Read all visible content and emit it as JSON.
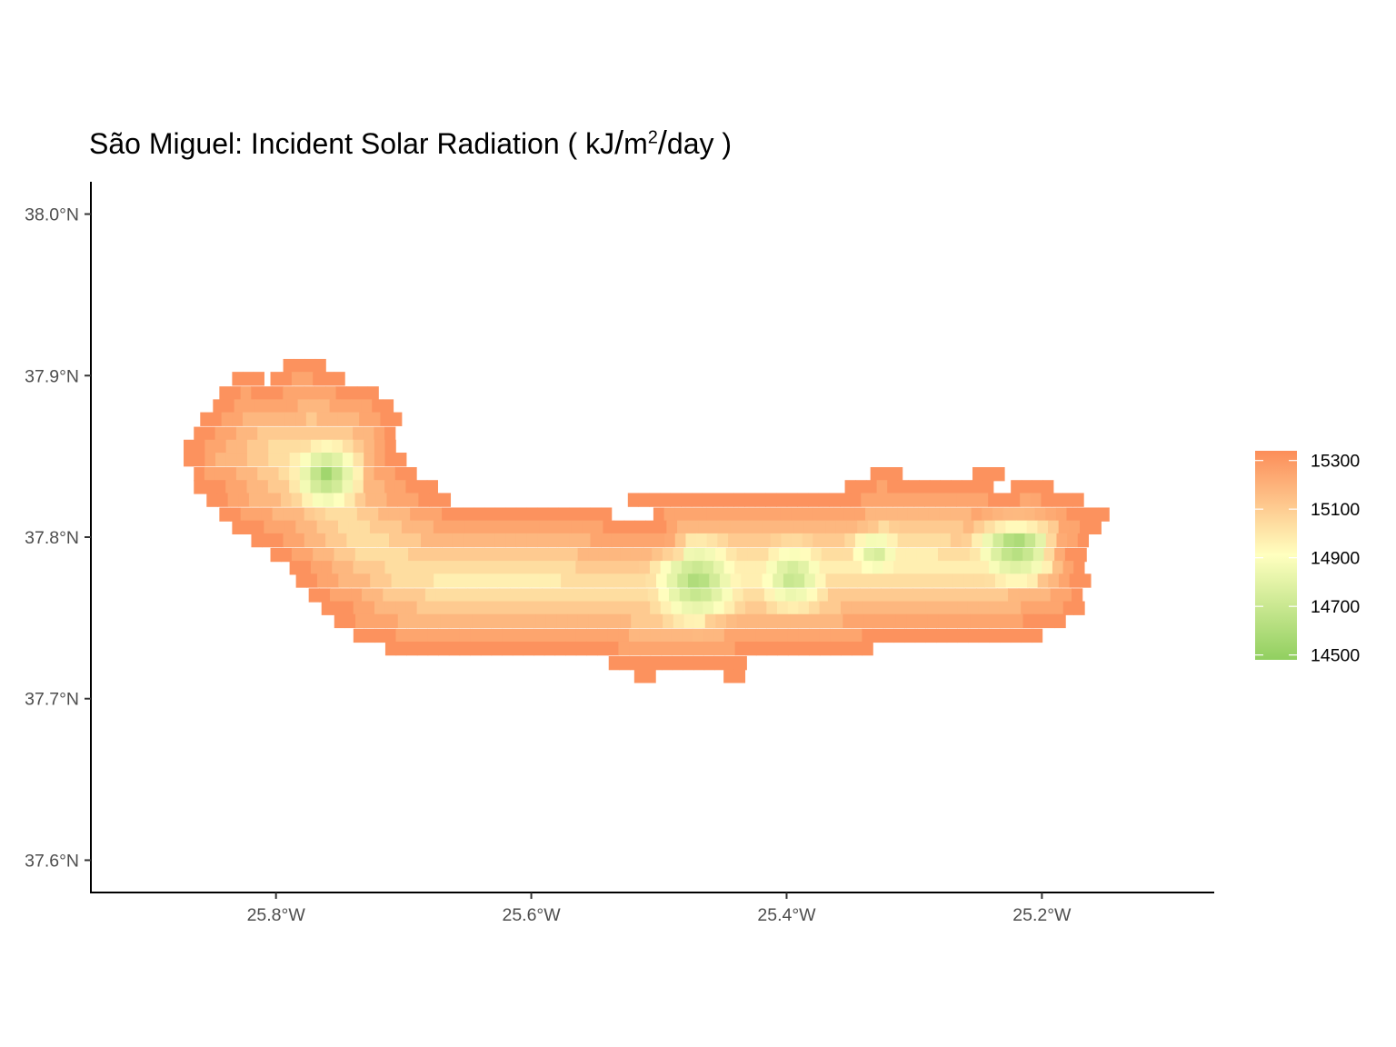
{
  "title": {
    "prefix": "São Miguel: Incident Solar Radiation ( kJ",
    "unit_m": "m",
    "unit_exp": "2",
    "unit_day": "day",
    "suffix": " )"
  },
  "chart_data": {
    "type": "heatmap",
    "x_axis": {
      "ticks": [
        -25.8,
        -25.6,
        -25.4,
        -25.2
      ],
      "tick_labels": [
        "25.8°W",
        "25.6°W",
        "25.4°W",
        "25.2°W"
      ],
      "range": [
        -25.945,
        -25.065
      ]
    },
    "y_axis": {
      "ticks": [
        38.0,
        37.9,
        37.8,
        37.7,
        37.6
      ],
      "tick_labels": [
        "38.0°N",
        "37.9°N",
        "37.8°N",
        "37.7°N",
        "37.6°N"
      ],
      "range": [
        37.58,
        38.02
      ]
    },
    "grid": false,
    "legend": {
      "placement": "right",
      "ticks": [
        15300,
        15100,
        14900,
        14700,
        14500
      ],
      "tick_labels": [
        "15300",
        "15100",
        "14900",
        "14700",
        "14500"
      ],
      "range": [
        14480,
        15340
      ],
      "colors": {
        "low": "#91cf60",
        "mid": "#ffffbf",
        "high": "#fc8d59"
      }
    },
    "cell_size": {
      "lon": 0.0083,
      "lat": 0.0083
    },
    "island_outline": {
      "note_free": true,
      "rows": [
        {
          "lat": 37.906,
          "lon": [
            -25.79,
            -25.765
          ]
        },
        {
          "lat": 37.898,
          "lon": [
            -25.83,
            -25.81,
            -25.8,
            -25.75
          ]
        },
        {
          "lat": 37.889,
          "lon": [
            -25.84,
            -25.72
          ]
        },
        {
          "lat": 37.881,
          "lon": [
            -25.845,
            -25.71
          ]
        },
        {
          "lat": 37.873,
          "lon": [
            -25.855,
            -25.7
          ]
        },
        {
          "lat": 37.864,
          "lon": [
            -25.86,
            -25.705
          ]
        },
        {
          "lat": 37.856,
          "lon": [
            -25.868,
            -25.71
          ]
        },
        {
          "lat": 37.848,
          "lon": [
            -25.868,
            -25.7
          ]
        },
        {
          "lat": 37.839,
          "lon": [
            -25.86,
            -25.69,
            -25.33,
            -25.31,
            -25.25,
            -25.23
          ]
        },
        {
          "lat": 37.831,
          "lon": [
            -25.86,
            -25.67,
            -25.35,
            -25.24,
            -25.22,
            -25.19
          ]
        },
        {
          "lat": 37.823,
          "lon": [
            -25.85,
            -25.66,
            -25.52,
            -25.17
          ]
        },
        {
          "lat": 37.814,
          "lon": [
            -25.84,
            -25.535,
            -25.5,
            -25.145
          ]
        },
        {
          "lat": 37.806,
          "lon": [
            -25.83,
            -25.15
          ]
        },
        {
          "lat": 37.798,
          "lon": [
            -25.815,
            -25.16
          ]
        },
        {
          "lat": 37.789,
          "lon": [
            -25.8,
            -25.165
          ]
        },
        {
          "lat": 37.781,
          "lon": [
            -25.785,
            -25.165
          ]
        },
        {
          "lat": 37.773,
          "lon": [
            -25.78,
            -25.165
          ]
        },
        {
          "lat": 37.764,
          "lon": [
            -25.77,
            -25.17
          ]
        },
        {
          "lat": 37.756,
          "lon": [
            -25.76,
            -25.17
          ]
        },
        {
          "lat": 37.748,
          "lon": [
            -25.75,
            -25.185
          ]
        },
        {
          "lat": 37.739,
          "lon": [
            -25.735,
            -25.2
          ]
        },
        {
          "lat": 37.731,
          "lon": [
            -25.71,
            -25.33
          ]
        },
        {
          "lat": 37.722,
          "lon": [
            -25.535,
            -25.43
          ]
        },
        {
          "lat": 37.714,
          "lon": [
            -25.515,
            -25.5,
            -25.445,
            -25.435
          ]
        }
      ]
    },
    "low_value_centers": [
      {
        "lon": -25.76,
        "lat": 37.838,
        "value": 14520,
        "radius": 0.045
      },
      {
        "lon": -25.47,
        "lat": 37.772,
        "value": 14560,
        "radius": 0.06
      },
      {
        "lon": -25.395,
        "lat": 37.775,
        "value": 14640,
        "radius": 0.05
      },
      {
        "lon": -25.22,
        "lat": 37.795,
        "value": 14520,
        "radius": 0.055
      },
      {
        "lon": -25.33,
        "lat": 37.79,
        "value": 14700,
        "radius": 0.04
      }
    ],
    "edge_value": 15320
  }
}
